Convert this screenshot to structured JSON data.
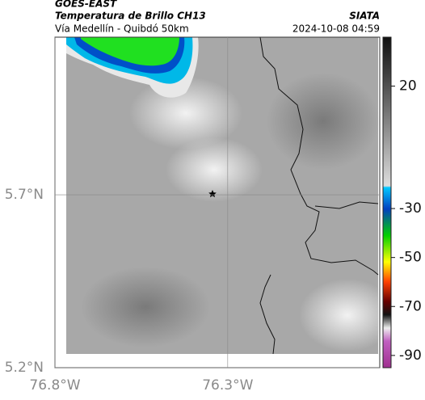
{
  "header": {
    "title": "GOES-EAST",
    "subtitle": "Temperatura de Brillo CH13",
    "region": "Vía Medellín - Quibdó 50km",
    "source": "SIATA",
    "timestamp": "2024-10-08 04:59"
  },
  "map": {
    "xlim": [
      -76.8,
      -75.86
    ],
    "ylim": [
      5.2,
      6.156
    ],
    "xticks": [
      {
        "value": -76.8,
        "label": "76.8°W"
      },
      {
        "value": -76.3,
        "label": "76.3°W"
      }
    ],
    "yticks": [
      {
        "value": 5.2,
        "label": "5.2°N"
      },
      {
        "value": 5.7,
        "label": "5.7°N"
      }
    ],
    "colorbar": {
      "lim": [
        40,
        -95
      ],
      "ticks": [
        20,
        -30,
        -50,
        -70,
        -90
      ]
    }
  }
}
